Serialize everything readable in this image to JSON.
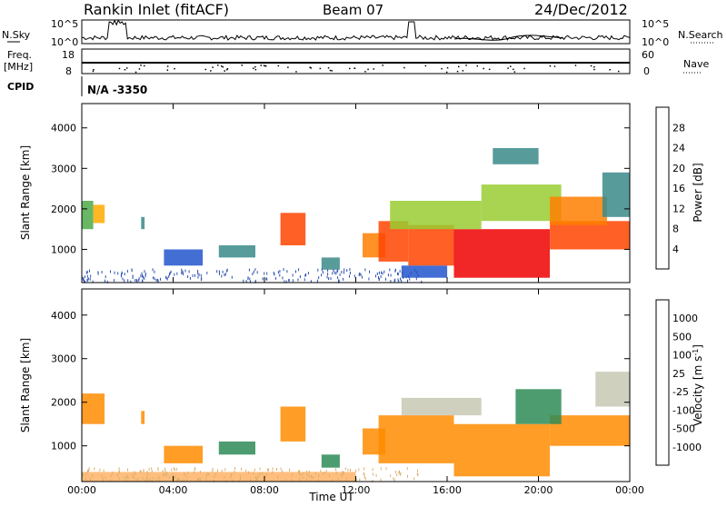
{
  "header": {
    "station": "Rankin Inlet (fitACF)",
    "beam": "Beam 07",
    "date": "24/Dec/2012"
  },
  "strip": {
    "nsky_label": "N.Sky",
    "nsky_ticks": [
      "10^5",
      "10^0"
    ],
    "nsearch_label": "N.Search",
    "nsearch_ticks": [
      "10^5",
      "10^0"
    ],
    "freq_label_1": "Freq.",
    "freq_label_2": "[MHz]",
    "freq_ticks": [
      "18",
      "8"
    ],
    "nave_label": "Nave",
    "nave_ticks": [
      "60",
      "0"
    ],
    "cpid_label": "CPID",
    "cpid_value": "N/A -3350"
  },
  "colors": {
    "power_scale": [
      "#0000ff",
      "#2255cc",
      "#3a8a8a",
      "#4caa4a",
      "#99cc33",
      "#ffaa00",
      "#ff7f00",
      "#ff4400",
      "#ee0000"
    ],
    "velocity_scale": [
      "#1a3caa",
      "#1f6fbf",
      "#2e8b57",
      "#7cc442",
      "#c8c8b4",
      "#ffb366",
      "#ff8c00",
      "#ff4500",
      "#e60000"
    ]
  },
  "chart_data": [
    {
      "type": "heatmap",
      "title": "Power",
      "ylabel": "Slant Range [km]",
      "xlabel": "Time UT",
      "ylim": [
        180,
        4600
      ],
      "yticks": [
        "1000",
        "2000",
        "3000",
        "4000"
      ],
      "xticks": [
        "00:00",
        "04:00",
        "08:00",
        "12:00",
        "16:00",
        "20:00",
        "00:00"
      ],
      "colorbar": {
        "label": "Power [dB]",
        "ticks": [
          "4",
          "8",
          "12",
          "16",
          "20",
          "24",
          "28"
        ],
        "range": [
          0,
          32
        ]
      },
      "regions": [
        {
          "t": [
            0.0,
            0.5
          ],
          "r": [
            1500,
            2200
          ],
          "v": 14
        },
        {
          "t": [
            0.5,
            1.0
          ],
          "r": [
            1650,
            2100
          ],
          "v": 18
        },
        {
          "t": [
            2.6,
            2.75
          ],
          "r": [
            1500,
            1800
          ],
          "v": 10
        },
        {
          "t": [
            3.6,
            5.3
          ],
          "r": [
            600,
            1000
          ],
          "v": 6
        },
        {
          "t": [
            6.0,
            7.6
          ],
          "r": [
            800,
            1100
          ],
          "v": 10
        },
        {
          "t": [
            8.7,
            9.8
          ],
          "r": [
            1100,
            1900
          ],
          "v": 26
        },
        {
          "t": [
            10.5,
            11.3
          ],
          "r": [
            500,
            800
          ],
          "v": 8
        },
        {
          "t": [
            12.3,
            13.3
          ],
          "r": [
            800,
            1400
          ],
          "v": 22
        },
        {
          "t": [
            13.0,
            14.3
          ],
          "r": [
            700,
            1700
          ],
          "v": 28
        },
        {
          "t": [
            14.3,
            16.3
          ],
          "r": [
            600,
            1600
          ],
          "v": 26
        },
        {
          "t": [
            16.3,
            20.5
          ],
          "r": [
            300,
            1500
          ],
          "v": 29
        },
        {
          "t": [
            20.5,
            24.0
          ],
          "r": [
            1000,
            1700
          ],
          "v": 27
        },
        {
          "t": [
            13.5,
            17.5
          ],
          "r": [
            1500,
            2200
          ],
          "v": 16
        },
        {
          "t": [
            17.5,
            21.0
          ],
          "r": [
            1700,
            2600
          ],
          "v": 15
        },
        {
          "t": [
            20.5,
            23.0
          ],
          "r": [
            1600,
            2300
          ],
          "v": 24
        },
        {
          "t": [
            22.8,
            24.0
          ],
          "r": [
            1800,
            2900
          ],
          "v": 8
        },
        {
          "t": [
            18.0,
            20.0
          ],
          "r": [
            3100,
            3500
          ],
          "v": 9
        },
        {
          "t": [
            14.0,
            16.0
          ],
          "r": [
            300,
            600
          ],
          "v": 4
        }
      ]
    },
    {
      "type": "heatmap",
      "title": "Velocity",
      "ylabel": "Slant Range [km]",
      "xlabel": "Time UT",
      "ylim": [
        180,
        4600
      ],
      "yticks": [
        "1000",
        "2000",
        "3000",
        "4000"
      ],
      "xticks": [
        "00:00",
        "04:00",
        "08:00",
        "12:00",
        "16:00",
        "20:00",
        "00:00"
      ],
      "colorbar": {
        "label": "Velocity [m s^-1]",
        "ticks": [
          "1000",
          "500",
          "100",
          "25",
          "-25",
          "-100",
          "-500",
          "-1000"
        ]
      },
      "regions": [
        {
          "t": [
            0.0,
            1.0
          ],
          "r": [
            1500,
            2200
          ],
          "v": -300
        },
        {
          "t": [
            2.6,
            2.75
          ],
          "r": [
            1500,
            1800
          ],
          "v": -300
        },
        {
          "t": [
            3.6,
            5.3
          ],
          "r": [
            600,
            1000
          ],
          "v": -300
        },
        {
          "t": [
            6.0,
            7.6
          ],
          "r": [
            800,
            1100
          ],
          "v": 200
        },
        {
          "t": [
            8.7,
            9.8
          ],
          "r": [
            1100,
            1900
          ],
          "v": -300
        },
        {
          "t": [
            10.5,
            11.3
          ],
          "r": [
            500,
            800
          ],
          "v": 200
        },
        {
          "t": [
            12.3,
            13.3
          ],
          "r": [
            800,
            1400
          ],
          "v": -200
        },
        {
          "t": [
            13.0,
            16.3
          ],
          "r": [
            600,
            1700
          ],
          "v": -300
        },
        {
          "t": [
            16.3,
            20.5
          ],
          "r": [
            300,
            1500
          ],
          "v": -500
        },
        {
          "t": [
            20.5,
            24.0
          ],
          "r": [
            1000,
            1700
          ],
          "v": -300
        },
        {
          "t": [
            14.0,
            17.5
          ],
          "r": [
            1700,
            2100
          ],
          "v": 10
        },
        {
          "t": [
            19.0,
            21.0
          ],
          "r": [
            1500,
            2300
          ],
          "v": 200
        },
        {
          "t": [
            22.5,
            24.0
          ],
          "r": [
            1900,
            2700
          ],
          "v": 10
        },
        {
          "t": [
            0.0,
            12.0
          ],
          "r": [
            180,
            400
          ],
          "v": -80
        }
      ]
    }
  ]
}
